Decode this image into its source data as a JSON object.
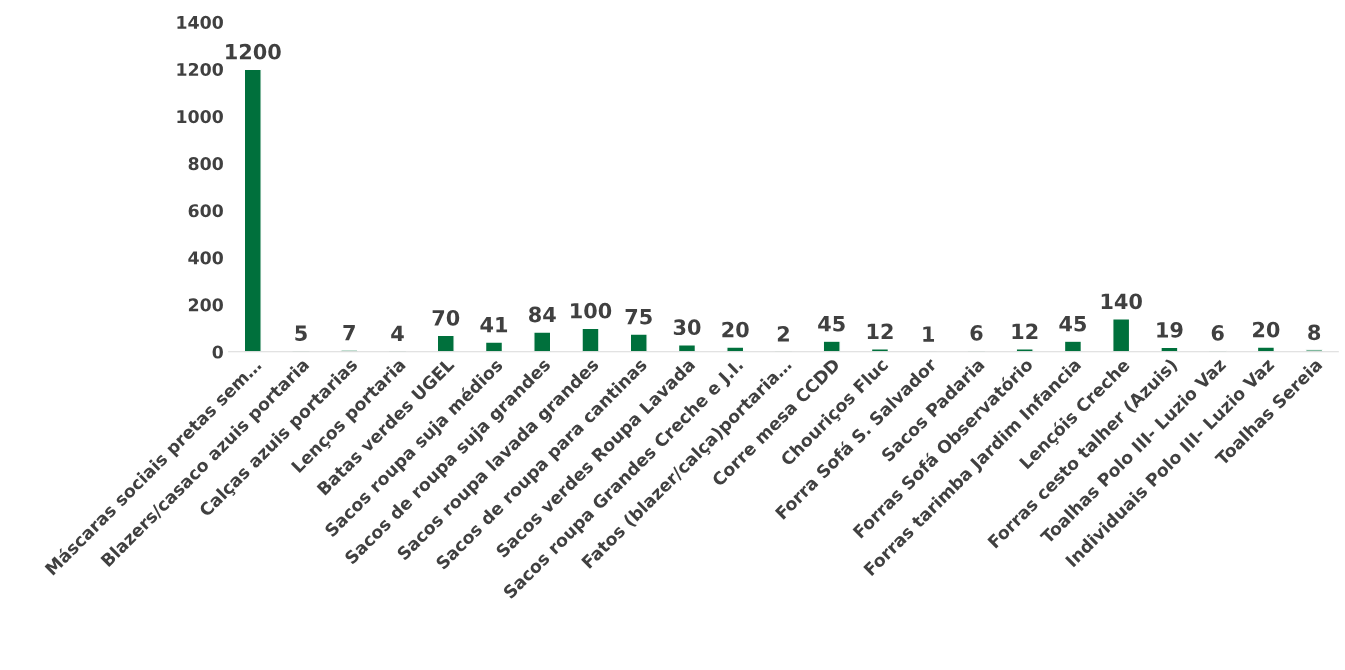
{
  "chart_data": {
    "type": "bar",
    "categories": [
      "Máscaras sociais pretas sem…",
      "Blazers/casaco azuis portaria",
      "Calças azuis portarias",
      "Lenços portaria",
      "Batas verdes UGEL",
      "Sacos roupa suja médios",
      "Sacos de roupa suja grandes",
      "Sacos roupa lavada grandes",
      "Sacos de roupa para cantinas",
      "Sacos verdes Roupa Lavada",
      "Sacos roupa Grandes Creche e J.I.",
      "Fatos (blazer/calça)portaria…",
      "Corre mesa CCDD",
      "Chouriços Fluc",
      "Forra Sofá S. Salvador",
      "Sacos Padaria",
      "Forras Sofá Observatório",
      "Forras tarimba Jardim Infancia",
      "Lençóis Creche",
      "Forras cesto talher (Azuis)",
      "Toalhas Polo III- Luzio Vaz",
      "Individuais Polo III- Luzio Vaz",
      "Toalhas Sereia"
    ],
    "values": [
      1200,
      5,
      7,
      4,
      70,
      41,
      84,
      100,
      75,
      30,
      20,
      2,
      45,
      12,
      1,
      6,
      12,
      45,
      140,
      19,
      6,
      20,
      8
    ],
    "color": "#00703c",
    "ylim": [
      0,
      1400
    ],
    "yticks": [
      0,
      200,
      400,
      600,
      800,
      1000,
      1200,
      1400
    ],
    "data_labels": true,
    "grid": false,
    "legend": false
  }
}
